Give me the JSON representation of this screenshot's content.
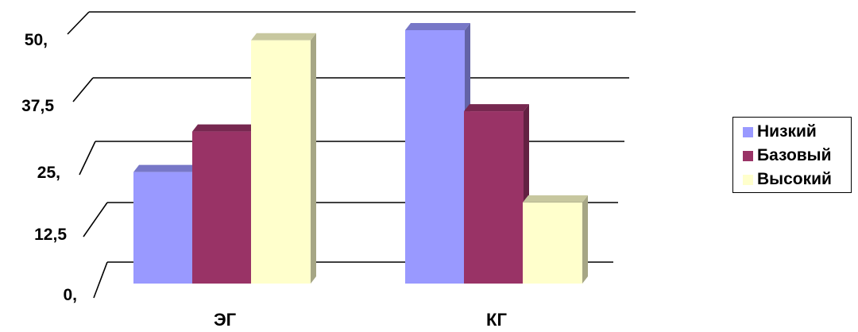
{
  "chart_data": {
    "type": "bar",
    "categories": [
      "ЭГ",
      "КГ"
    ],
    "series": [
      {
        "name": "Низкий",
        "values": [
          22,
          50
        ],
        "color": "#9999ff"
      },
      {
        "name": "Базовый",
        "values": [
          30,
          34
        ],
        "color": "#993366"
      },
      {
        "name": "Высокий",
        "values": [
          48,
          16
        ],
        "color": "#ffffcc"
      }
    ],
    "yticks": [
      "0,",
      "12,5",
      "25,",
      "37,5",
      "50,"
    ],
    "ylim": [
      0,
      50
    ],
    "grid": true,
    "legend_position": "right",
    "style": "3d-clustered"
  }
}
